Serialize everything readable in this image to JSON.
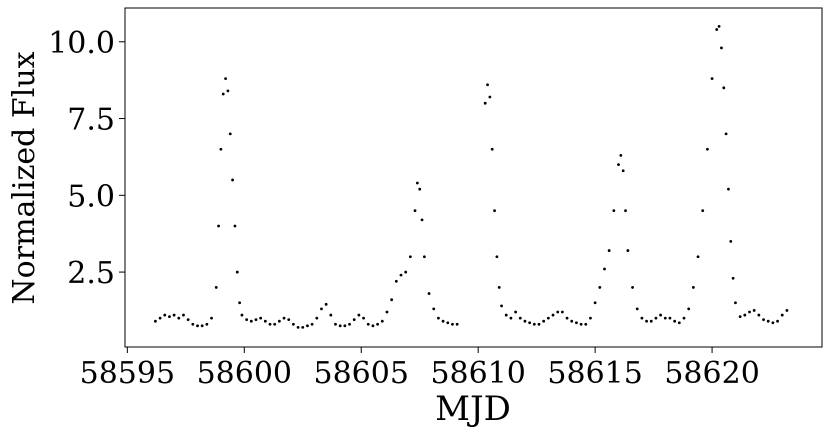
{
  "chart_data": {
    "type": "scatter",
    "xlabel": "MJD",
    "ylabel": "Normalized Flux",
    "color": "#000000",
    "xlim": [
      58594.9,
      58624.7
    ],
    "ylim": [
      0.06,
      11.1
    ],
    "xticks": [
      58595,
      58600,
      58605,
      58610,
      58615,
      58620
    ],
    "yticks": [
      {
        "value": 2.5,
        "label": "2.5"
      },
      {
        "value": 5,
        "label": "5.0"
      },
      {
        "value": 7.5,
        "label": "7.5"
      },
      {
        "value": 10,
        "label": "10.0"
      }
    ],
    "x": [
      58596.2,
      58596.4,
      58596.6,
      58596.8,
      58597.0,
      58597.2,
      58597.4,
      58597.6,
      58597.8,
      58598.0,
      58598.2,
      58598.4,
      58598.6,
      58598.8,
      58598.9,
      58599.0,
      58599.1,
      58599.2,
      58599.3,
      58599.4,
      58599.5,
      58599.6,
      58599.7,
      58599.8,
      58599.9,
      58600.1,
      58600.3,
      58600.5,
      58600.7,
      58600.9,
      58601.1,
      58601.3,
      58601.5,
      58601.7,
      58601.9,
      58602.1,
      58602.3,
      58602.5,
      58602.7,
      58602.9,
      58603.1,
      58603.3,
      58603.5,
      58603.7,
      58603.9,
      58604.1,
      58604.3,
      58604.5,
      58604.7,
      58604.9,
      58605.1,
      58605.3,
      58605.5,
      58605.7,
      58605.9,
      58606.1,
      58606.3,
      58606.5,
      58606.7,
      58606.9,
      58607.1,
      58607.3,
      58607.4,
      58607.5,
      58607.6,
      58607.7,
      58607.9,
      58608.1,
      58608.3,
      58608.5,
      58608.7,
      58608.9,
      58609.1,
      58610.3,
      58610.4,
      58610.5,
      58610.6,
      58610.7,
      58610.8,
      58610.9,
      58611.0,
      58611.2,
      58611.4,
      58611.6,
      58611.8,
      58612.0,
      58612.2,
      58612.4,
      58612.6,
      58612.8,
      58613.0,
      58613.2,
      58613.4,
      58613.6,
      58613.8,
      58614.0,
      58614.2,
      58614.4,
      58614.6,
      58614.8,
      58615.0,
      58615.2,
      58615.4,
      58615.6,
      58615.8,
      58616.0,
      58616.1,
      58616.2,
      58616.3,
      58616.4,
      58616.6,
      58616.8,
      58617.0,
      58617.2,
      58617.4,
      58617.6,
      58617.8,
      58618.0,
      58618.2,
      58618.4,
      58618.6,
      58618.8,
      58619.0,
      58619.2,
      58619.4,
      58619.6,
      58619.8,
      58620.0,
      58620.2,
      58620.3,
      58620.4,
      58620.5,
      58620.6,
      58620.7,
      58620.8,
      58620.9,
      58621.0,
      58621.2,
      58621.4,
      58621.6,
      58621.8,
      58622.0,
      58622.2,
      58622.4,
      58622.6,
      58622.8,
      58623.0,
      58623.2
    ],
    "y": [
      0.9,
      1.0,
      1.1,
      1.05,
      1.1,
      1.0,
      1.1,
      0.95,
      0.8,
      0.75,
      0.75,
      0.8,
      1.0,
      2.0,
      4.0,
      6.5,
      8.3,
      8.8,
      8.4,
      7.0,
      5.5,
      4.0,
      2.5,
      1.5,
      1.1,
      0.95,
      0.9,
      0.95,
      1.0,
      0.9,
      0.8,
      0.8,
      0.9,
      1.0,
      0.95,
      0.8,
      0.7,
      0.7,
      0.75,
      0.8,
      1.0,
      1.3,
      1.45,
      1.1,
      0.8,
      0.75,
      0.75,
      0.8,
      0.95,
      1.1,
      1.0,
      0.8,
      0.75,
      0.8,
      0.9,
      1.2,
      1.6,
      2.2,
      2.4,
      2.5,
      3.0,
      4.5,
      5.4,
      5.2,
      4.2,
      3.0,
      1.8,
      1.3,
      1.0,
      0.9,
      0.85,
      0.8,
      0.8,
      8.0,
      8.6,
      8.2,
      6.5,
      4.5,
      3.0,
      2.0,
      1.4,
      1.1,
      1.0,
      1.2,
      1.0,
      0.9,
      0.85,
      0.8,
      0.8,
      0.9,
      1.0,
      1.1,
      1.2,
      1.2,
      1.0,
      0.9,
      0.85,
      0.8,
      0.8,
      1.0,
      1.5,
      2.0,
      2.6,
      3.2,
      4.5,
      6.0,
      6.3,
      5.8,
      4.5,
      3.2,
      2.0,
      1.3,
      1.0,
      0.9,
      0.9,
      1.0,
      1.1,
      1.0,
      1.0,
      0.9,
      0.85,
      1.0,
      1.3,
      2.0,
      3.0,
      4.5,
      6.5,
      8.8,
      10.4,
      10.5,
      9.8,
      8.5,
      7.0,
      5.2,
      3.5,
      2.3,
      1.5,
      1.05,
      1.1,
      1.2,
      1.25,
      1.1,
      0.95,
      0.9,
      0.85,
      0.9,
      1.1,
      1.25
    ]
  }
}
